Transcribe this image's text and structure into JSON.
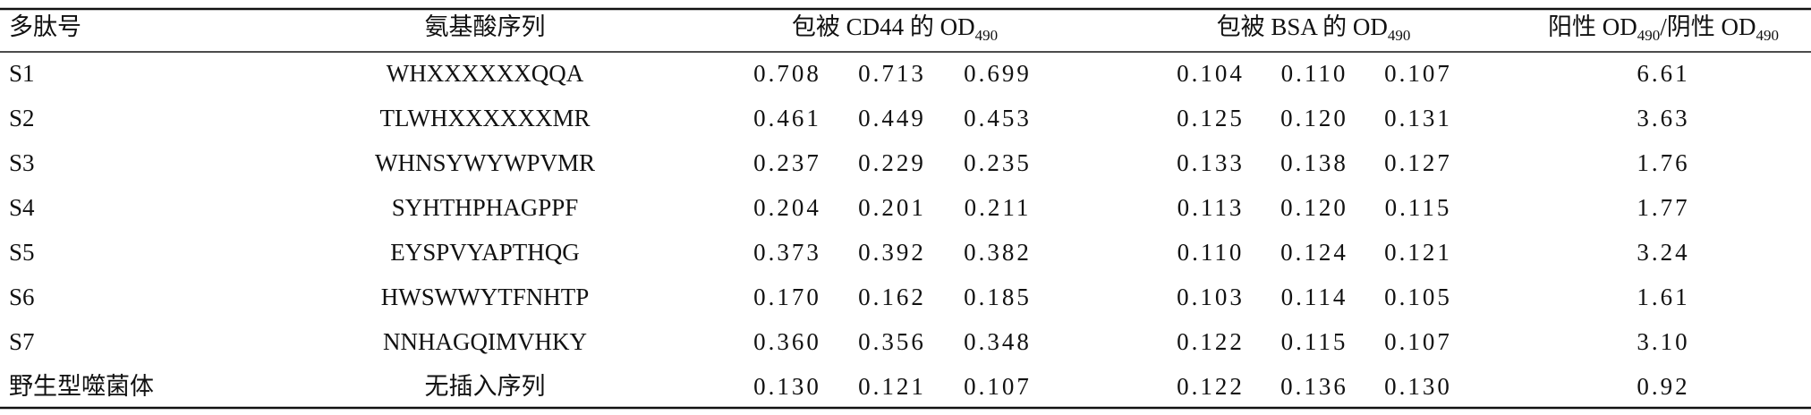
{
  "table": {
    "header": [
      [
        {
          "t": "多肽号"
        }
      ],
      [
        {
          "t": "氨基酸序列"
        }
      ],
      [
        {
          "t": "包被 CD44 的 OD"
        },
        {
          "sub": "490"
        }
      ],
      [
        {
          "t": "包被 BSA 的 OD"
        },
        {
          "sub": "490"
        }
      ],
      [
        {
          "t": "阳性 OD"
        },
        {
          "sub": "490"
        },
        {
          "t": "/阴性 OD"
        },
        {
          "sub": "490"
        }
      ]
    ],
    "rows": [
      {
        "name": "S1",
        "sequence": "WHXXXXXXQQA",
        "cd44": [
          "0.708",
          "0.713",
          "0.699"
        ],
        "bsa": [
          "0.104",
          "0.110",
          "0.107"
        ],
        "ratio": "6.61"
      },
      {
        "name": "S2",
        "sequence": "TLWHXXXXXXMR",
        "cd44": [
          "0.461",
          "0.449",
          "0.453"
        ],
        "bsa": [
          "0.125",
          "0.120",
          "0.131"
        ],
        "ratio": "3.63"
      },
      {
        "name": "S3",
        "sequence": "WHNSYWYWPVMR",
        "cd44": [
          "0.237",
          "0.229",
          "0.235"
        ],
        "bsa": [
          "0.133",
          "0.138",
          "0.127"
        ],
        "ratio": "1.76"
      },
      {
        "name": "S4",
        "sequence": "SYHTHPHAGPPF",
        "cd44": [
          "0.204",
          "0.201",
          "0.211"
        ],
        "bsa": [
          "0.113",
          "0.120",
          "0.115"
        ],
        "ratio": "1.77"
      },
      {
        "name": "S5",
        "sequence": "EYSPVYAPTHQG",
        "cd44": [
          "0.373",
          "0.392",
          "0.382"
        ],
        "bsa": [
          "0.110",
          "0.124",
          "0.121"
        ],
        "ratio": "3.24"
      },
      {
        "name": "S6",
        "sequence": "HWSWWYTFNHTP",
        "cd44": [
          "0.170",
          "0.162",
          "0.185"
        ],
        "bsa": [
          "0.103",
          "0.114",
          "0.105"
        ],
        "ratio": "1.61"
      },
      {
        "name": "S7",
        "sequence": "NNHAGQIMVHKY",
        "cd44": [
          "0.360",
          "0.356",
          "0.348"
        ],
        "bsa": [
          "0.122",
          "0.115",
          "0.107"
        ],
        "ratio": "3.10"
      },
      {
        "name": "野生型噬菌体",
        "sequence": "无插入序列",
        "cd44": [
          "0.130",
          "0.121",
          "0.107"
        ],
        "bsa": [
          "0.122",
          "0.136",
          "0.130"
        ],
        "ratio": "0.92"
      }
    ]
  }
}
